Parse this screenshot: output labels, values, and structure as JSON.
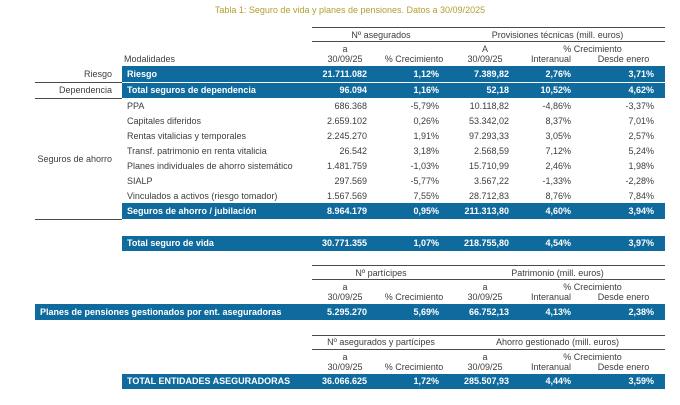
{
  "title": "Tabla 1: Seguro de vida y planes de pensiones. Datos a 30/09/2025",
  "colors": {
    "accent_blue": "#0f6a9e",
    "title_gold": "#b1a02f",
    "line_gray": "#4a4a4a"
  },
  "life_table": {
    "group_left": "Nº asegurados",
    "group_right": "Provisiones técnicas (mill. euros)",
    "sub_a_left": "a",
    "sub_a_right": "A",
    "sub_growth": "% Crecimiento",
    "columns": [
      "Modalidades",
      "30/09/25",
      "% Crecimiento",
      "30/09/25",
      "Interanual",
      "Desde enero"
    ],
    "rows": [
      {
        "gutter": "Riesgo",
        "label": "Riesgo",
        "highlight": true,
        "values": [
          "21.711.082",
          "1,12%",
          "7.389,82",
          "2,76%",
          "3,71%"
        ]
      },
      {
        "gutter": "Dependencia",
        "label": "Total seguros de dependencia",
        "highlight": true,
        "values": [
          "96.094",
          "1,16%",
          "52,18",
          "10,52%",
          "4,62%"
        ]
      },
      {
        "gutter": "Seguros de ahorro",
        "label": "PPA",
        "highlight": false,
        "values": [
          "686.368",
          "-5,79%",
          "10.118,82",
          "-4,86%",
          "-3,37%"
        ]
      },
      {
        "label": "Capitales diferidos",
        "highlight": false,
        "values": [
          "2.659.102",
          "0,26%",
          "53.342,02",
          "8,37%",
          "7,01%"
        ]
      },
      {
        "label": "Rentas vitalicias y temporales",
        "highlight": false,
        "values": [
          "2.245.270",
          "1,91%",
          "97.293,33",
          "3,05%",
          "2,57%"
        ]
      },
      {
        "label": "Transf. patrimonio en renta vitalicia",
        "highlight": false,
        "values": [
          "26.542",
          "3,18%",
          "2.568,59",
          "7,12%",
          "5,24%"
        ]
      },
      {
        "label": "Planes individuales de ahorro sistemático",
        "highlight": false,
        "values": [
          "1.481.759",
          "-1,03%",
          "15.710,99",
          "2,46%",
          "1,98%"
        ]
      },
      {
        "label": "SIALP",
        "highlight": false,
        "values": [
          "297.569",
          "-5,77%",
          "3.567,22",
          "-1,33%",
          "-2,28%"
        ]
      },
      {
        "label": "Vinculados a activos (riesgo tomador)",
        "highlight": false,
        "values": [
          "1.567.569",
          "7,55%",
          "28.712,83",
          "8,76%",
          "7,84%"
        ]
      },
      {
        "label": "Seguros de ahorro / jubilación",
        "highlight": true,
        "values": [
          "8.964.179",
          "0,95%",
          "211.313,80",
          "4,60%",
          "3,94%"
        ]
      }
    ],
    "total": {
      "label": "Total seguro de vida",
      "values": [
        "30.771.355",
        "1,07%",
        "218.755,80",
        "4,54%",
        "3,97%"
      ]
    }
  },
  "pensions_table": {
    "group_left": "Nº partícipes",
    "group_right": "Patrimonio (mill. euros)",
    "sub_a_left": "a",
    "sub_a_right": "a",
    "sub_growth": "% Crecimiento",
    "columns": [
      "30/09/25",
      "% Crecimiento",
      "30/09/25",
      "Interanual",
      "Desde enero"
    ],
    "row": {
      "label": "Planes de pensiones gestionados por ent. aseguradoras",
      "values": [
        "5.295.270",
        "5,69%",
        "66.752,13",
        "4,13%",
        "2,38%"
      ]
    }
  },
  "totals_table": {
    "group_left": "Nº asegurados y partícipes",
    "group_right": "Ahorro gestionado (mill. euros)",
    "sub_a_left": "a",
    "sub_a_right": "a",
    "sub_growth": "% Crecimiento",
    "columns": [
      "30/09/25",
      "% Crecimiento",
      "30/09/25",
      "Interanual",
      "Desde enero"
    ],
    "row": {
      "label": "TOTAL ENTIDADES ASEGURADORAS",
      "values": [
        "36.066.625",
        "1,72%",
        "285.507,93",
        "4,44%",
        "3,59%"
      ]
    }
  }
}
